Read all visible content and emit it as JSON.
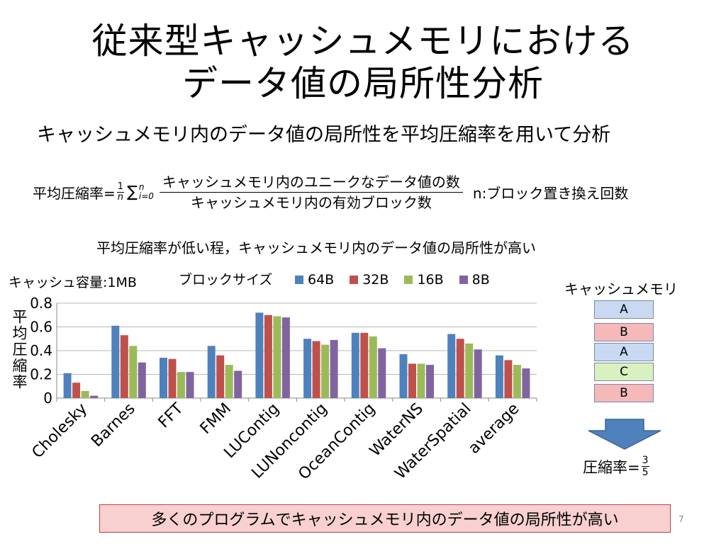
{
  "slide": {
    "title_line1": "従来型キャッシュメモリにおける",
    "title_line2": "データ値の局所性分析",
    "subtitle": "キャッシュメモリ内のデータ値の局所性を平均圧縮率を用いて分析",
    "formula": {
      "lhs": "平均圧縮率=",
      "coef_num": "1",
      "coef_den": "n",
      "sigma": "∑",
      "sum_upper": "n",
      "sum_lower": "i=0",
      "numerator": "キャッシュメモリ内のユニークなデータ値の数",
      "denominator": "キャッシュメモリ内の有効ブロック数",
      "note": "n:ブロック置き換え回数"
    },
    "statement": "平均圧縮率が低い程，キャッシュメモリ内のデータ値の局所性が高い",
    "cache_capacity": "キャッシュ容量:1MB",
    "block_size_label": "ブロックサイズ",
    "cache_diagram": {
      "title": "キャッシュメモリ",
      "blocks": [
        {
          "label": "A",
          "color": "#c9d9f2"
        },
        {
          "label": "B",
          "color": "#f5b9b9"
        },
        {
          "label": "A",
          "color": "#c9d9f2"
        },
        {
          "label": "C",
          "color": "#d9f0c0"
        },
        {
          "label": "B",
          "color": "#f5b9b9"
        }
      ],
      "ratio_label": "圧縮率=",
      "ratio_num": "3",
      "ratio_den": "5"
    },
    "conclusion": "多くのプログラムでキャッシュメモリ内のデータ値の局所性が高い",
    "page_number": "7"
  },
  "chart_data": {
    "type": "bar",
    "ylabel": "平均圧縮率",
    "ylim": [
      0,
      0.8
    ],
    "yticks": [
      "0",
      "0.2",
      "0.4",
      "0.6",
      "0.8"
    ],
    "grid": true,
    "legend_position": "top",
    "categories": [
      "Cholesky",
      "Barnes",
      "FFT",
      "FMM",
      "LUContig",
      "LUNoncontig",
      "OceanContig",
      "WaterNS",
      "WaterSpatial",
      "average"
    ],
    "series": [
      {
        "name": "64B",
        "color": "#4f81bd",
        "values": [
          0.21,
          0.61,
          0.34,
          0.44,
          0.72,
          0.5,
          0.55,
          0.37,
          0.54,
          0.36
        ]
      },
      {
        "name": "32B",
        "color": "#c0504d",
        "values": [
          0.13,
          0.53,
          0.33,
          0.36,
          0.7,
          0.48,
          0.55,
          0.29,
          0.5,
          0.32
        ]
      },
      {
        "name": "16B",
        "color": "#9bbb59",
        "values": [
          0.06,
          0.44,
          0.22,
          0.28,
          0.69,
          0.45,
          0.52,
          0.29,
          0.46,
          0.28
        ]
      },
      {
        "name": "8B",
        "color": "#8064a2",
        "values": [
          0.02,
          0.3,
          0.22,
          0.23,
          0.68,
          0.49,
          0.42,
          0.28,
          0.41,
          0.25
        ]
      }
    ]
  }
}
